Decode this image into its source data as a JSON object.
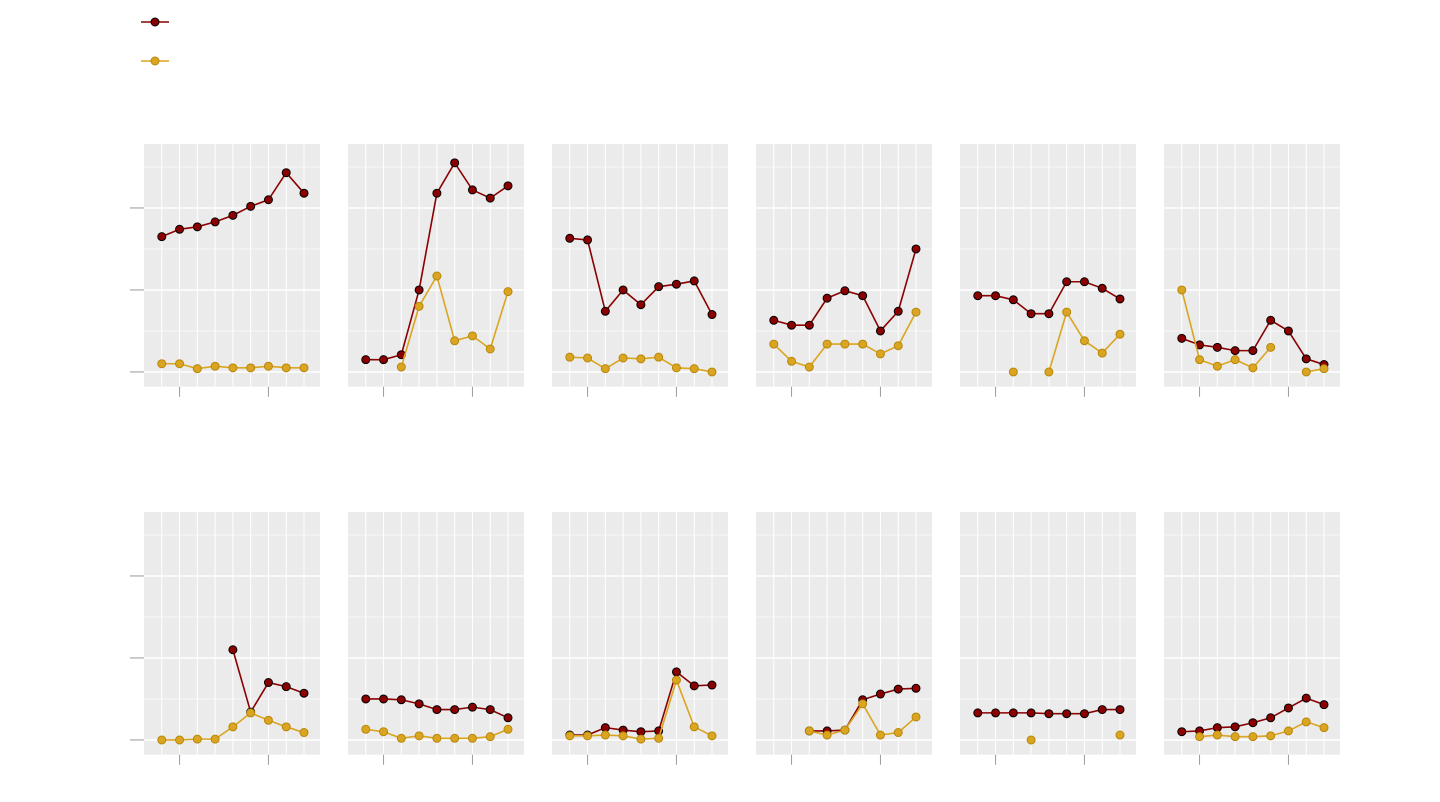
{
  "chart_data": {
    "type": "line",
    "x": [
      0,
      1,
      2,
      3,
      4,
      5,
      6,
      7,
      8
    ],
    "xlim": [
      -1,
      8.9
    ],
    "ylim": [
      -0.18,
      2.78
    ],
    "xticks": [
      1,
      6
    ],
    "yticks": [
      0,
      1,
      2
    ],
    "yminor": [
      0.5,
      1.5,
      2.5
    ],
    "grid": true,
    "series_colors": [
      "#8b0000",
      "#daa520"
    ],
    "panels": [
      {
        "series": [
          {
            "values": [
              1.65,
              1.74,
              1.77,
              1.83,
              1.91,
              2.02,
              2.1,
              2.43,
              2.18
            ]
          },
          {
            "values": [
              0.1,
              0.1,
              0.04,
              0.07,
              0.05,
              0.05,
              0.07,
              0.05,
              0.05
            ]
          }
        ]
      },
      {
        "series": [
          {
            "values": [
              0.15,
              0.15,
              0.21,
              1.0,
              2.18,
              2.55,
              2.22,
              2.12,
              2.27
            ]
          },
          {
            "values": [
              null,
              null,
              0.06,
              0.8,
              1.17,
              0.38,
              0.44,
              0.28,
              0.98
            ]
          }
        ]
      },
      {
        "series": [
          {
            "values": [
              1.63,
              1.61,
              0.74,
              1.0,
              0.82,
              1.04,
              1.07,
              1.11,
              0.7
            ]
          },
          {
            "values": [
              0.18,
              0.17,
              0.04,
              0.17,
              0.16,
              0.18,
              0.05,
              0.04,
              0
            ]
          }
        ]
      },
      {
        "series": [
          {
            "values": [
              0.63,
              0.57,
              0.57,
              0.9,
              0.99,
              0.93,
              0.5,
              0.74,
              1.5
            ]
          },
          {
            "values": [
              0.34,
              0.13,
              0.06,
              0.34,
              0.34,
              0.34,
              0.22,
              0.32,
              0.73
            ]
          }
        ]
      },
      {
        "series": [
          {
            "values": [
              0.93,
              0.93,
              0.88,
              0.71,
              0.71,
              1.1,
              1.1,
              1.02,
              0.89
            ]
          },
          {
            "values": [
              null,
              null,
              0,
              null,
              0,
              0.73,
              0.38,
              0.23,
              0.46
            ]
          }
        ]
      },
      {
        "series": [
          {
            "values": [
              0.41,
              0.33,
              0.3,
              0.26,
              0.26,
              0.63,
              0.5,
              0.16,
              0.09
            ]
          },
          {
            "values": [
              1.0,
              0.15,
              0.07,
              0.15,
              0.05,
              0.3,
              null,
              0,
              0.04
            ]
          }
        ]
      },
      {
        "series": [
          {
            "values": [
              null,
              null,
              null,
              null,
              1.1,
              0.34,
              0.7,
              0.65,
              0.57
            ]
          },
          {
            "values": [
              0,
              0,
              0.01,
              0.01,
              0.16,
              0.33,
              0.24,
              0.16,
              0.09
            ]
          }
        ]
      },
      {
        "series": [
          {
            "values": [
              0.5,
              0.5,
              0.49,
              0.44,
              0.37,
              0.37,
              0.4,
              0.37,
              0.27
            ]
          },
          {
            "values": [
              0.13,
              0.1,
              0.02,
              0.05,
              0.02,
              0.02,
              0.02,
              0.04,
              0.13
            ]
          }
        ]
      },
      {
        "series": [
          {
            "values": [
              0.06,
              0.06,
              0.15,
              0.12,
              0.1,
              0.11,
              0.83,
              0.66,
              0.67
            ]
          },
          {
            "values": [
              0.05,
              0.05,
              0.06,
              0.05,
              0.01,
              0.02,
              0.73,
              0.16,
              0.05
            ]
          }
        ]
      },
      {
        "series": [
          {
            "values": [
              null,
              null,
              0.11,
              0.11,
              0.12,
              0.49,
              0.56,
              0.62,
              0.63
            ]
          },
          {
            "values": [
              null,
              null,
              0.11,
              0.06,
              0.12,
              0.44,
              0.06,
              0.09,
              0.28
            ]
          }
        ]
      },
      {
        "series": [
          {
            "values": [
              0.33,
              0.33,
              0.33,
              0.33,
              0.32,
              0.32,
              0.32,
              0.37,
              0.37
            ]
          },
          {
            "values": [
              null,
              null,
              null,
              0,
              null,
              null,
              null,
              null,
              0.06
            ]
          }
        ]
      },
      {
        "series": [
          {
            "values": [
              0.1,
              0.11,
              0.15,
              0.16,
              0.21,
              0.27,
              0.39,
              0.51,
              0.43
            ]
          },
          {
            "values": [
              null,
              0.04,
              0.06,
              0.04,
              0.04,
              0.05,
              0.11,
              0.22,
              0.15
            ]
          }
        ]
      }
    ]
  }
}
